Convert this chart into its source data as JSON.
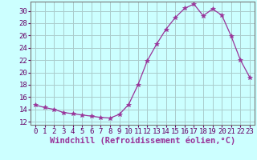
{
  "x": [
    0,
    1,
    2,
    3,
    4,
    5,
    6,
    7,
    8,
    9,
    10,
    11,
    12,
    13,
    14,
    15,
    16,
    17,
    18,
    19,
    20,
    21,
    22,
    23
  ],
  "y": [
    14.7,
    14.3,
    14.0,
    13.5,
    13.3,
    13.1,
    12.9,
    12.7,
    12.6,
    13.2,
    14.8,
    18.0,
    21.9,
    24.6,
    27.0,
    28.9,
    30.4,
    31.1,
    29.2,
    30.3,
    29.3,
    25.9,
    22.0,
    19.2
  ],
  "line_color": "#993399",
  "marker": "*",
  "marker_size": 4,
  "bg_color": "#ccffff",
  "grid_color": "#aacccc",
  "xlabel": "Windchill (Refroidissement éolien,°C)",
  "xlabel_fontsize": 7.5,
  "ylabel_ticks": [
    12,
    14,
    16,
    18,
    20,
    22,
    24,
    26,
    28,
    30
  ],
  "ylim": [
    11.5,
    31.5
  ],
  "xlim": [
    -0.5,
    23.5
  ],
  "tick_fontsize": 6.5,
  "title": ""
}
